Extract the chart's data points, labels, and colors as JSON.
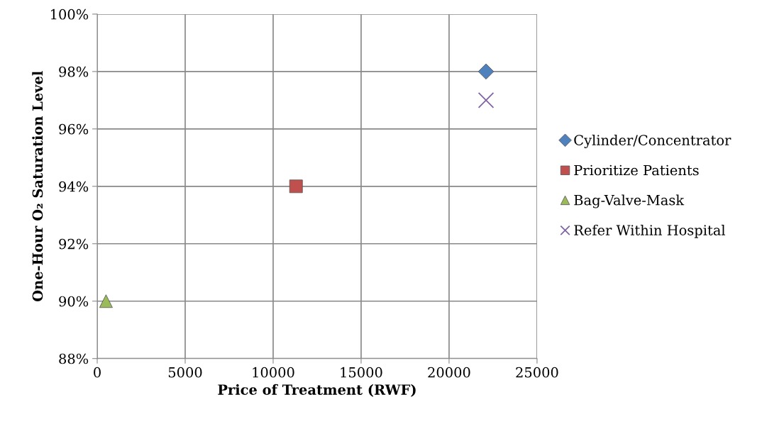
{
  "chart_data": {
    "type": "scatter",
    "xlabel": "Price of Treatment (RWF)",
    "ylabel": "One-Hour O₂ Saturation Level",
    "series": [
      {
        "name": "Cylinder/Concentrator",
        "color": "#4f81bd",
        "marker": "diamond",
        "x": [
          22100
        ],
        "values": [
          98
        ]
      },
      {
        "name": "Prioritize Patients",
        "color": "#c0504d",
        "marker": "square",
        "x": [
          11300
        ],
        "values": [
          94
        ]
      },
      {
        "name": "Bag-Valve-Mask",
        "color": "#9bbb59",
        "marker": "triangle",
        "x": [
          500
        ],
        "values": [
          90
        ]
      },
      {
        "name": "Refer Within Hospital",
        "color": "#8064a2",
        "marker": "cross",
        "x": [
          22100
        ],
        "values": [
          97
        ]
      }
    ],
    "xlim": [
      0,
      25000
    ],
    "xticks": [
      0,
      5000,
      10000,
      15000,
      20000,
      25000
    ],
    "ylim": [
      88,
      100
    ],
    "yticks": [
      {
        "value": 88,
        "label": "88%"
      },
      {
        "value": 90,
        "label": "90%"
      },
      {
        "value": 92,
        "label": "92%"
      },
      {
        "value": 94,
        "label": "94%"
      },
      {
        "value": 96,
        "label": "96%"
      },
      {
        "value": 98,
        "label": "98%"
      },
      {
        "value": 100,
        "label": "100%"
      }
    ],
    "grid": true,
    "legend": "right"
  }
}
